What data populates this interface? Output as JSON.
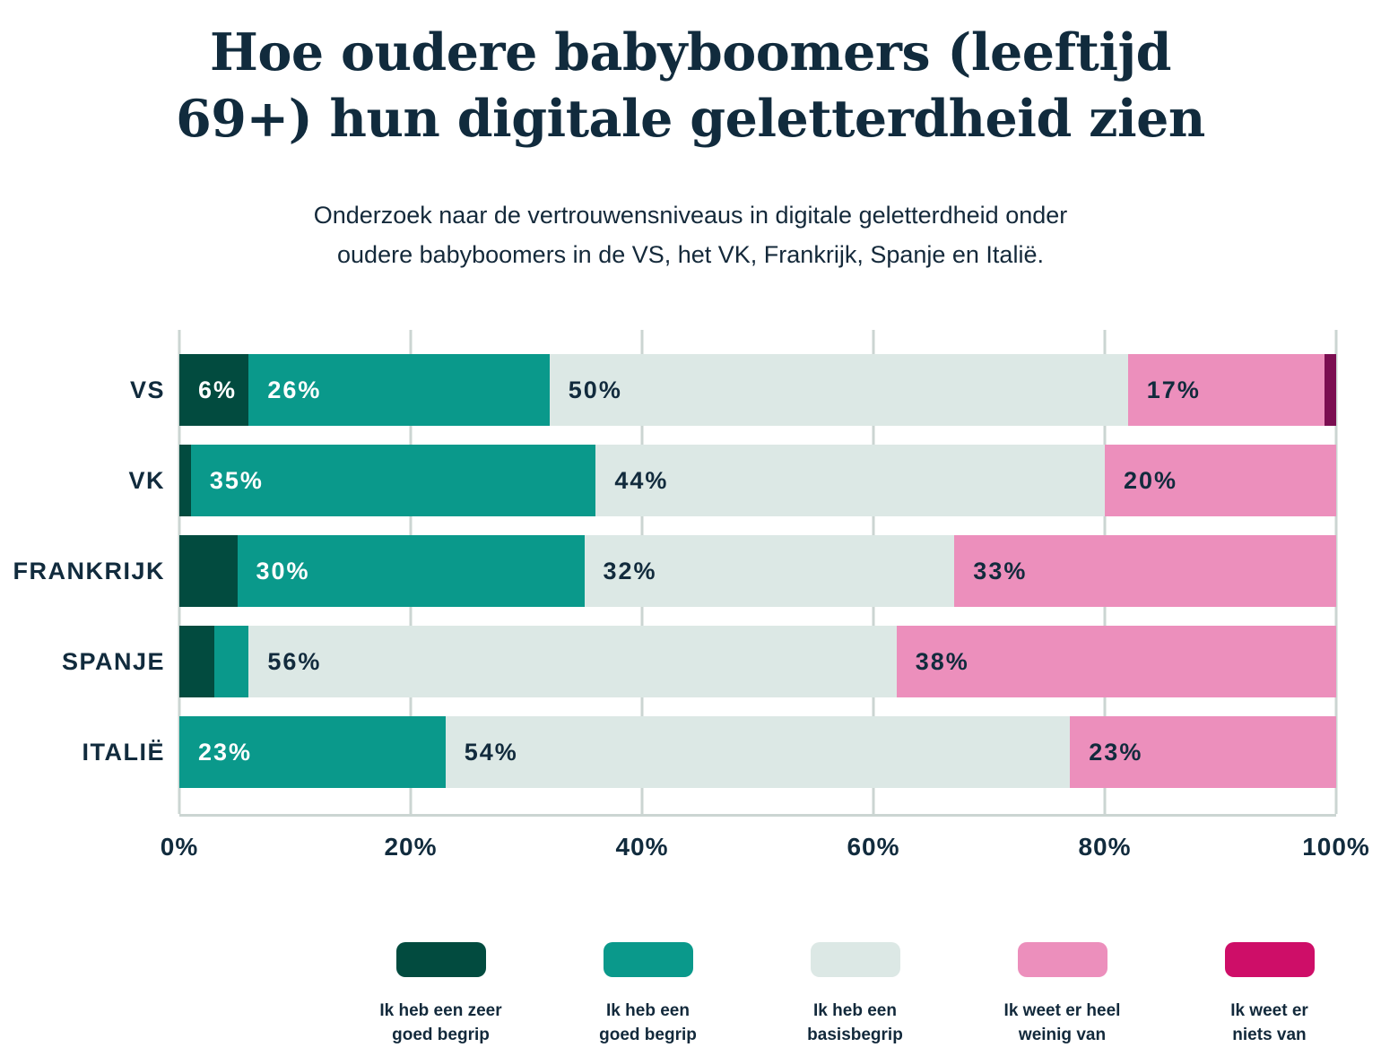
{
  "title": {
    "line1": "Hoe oudere babyboomers (leeftijd",
    "line2": "69+) hun digitale geletterdheid zien"
  },
  "subtitle": {
    "line1": "Onderzoek naar de vertrouwensniveaus in digitale geletterdheid onder",
    "line2": "oudere babyboomers in de VS, het VK, Frankrijk, Spanje en Italië."
  },
  "colors": {
    "text_navy": "#112b3d",
    "gridline": "#cbd5d2",
    "background": "#ffffff"
  },
  "chart_data": {
    "type": "bar",
    "orientation": "horizontal-stacked",
    "title": "Hoe oudere babyboomers (leeftijd 69+) hun digitale geletterdheid zien",
    "subtitle": "Onderzoek naar de vertrouwensniveaus in digitale geletterdheid onder oudere babyboomers in de VS, het VK, Frankrijk, Spanje en Italië.",
    "categories": [
      "VS",
      "VK",
      "FRANKRIJK",
      "SPANJE",
      "ITALIË"
    ],
    "series": [
      {
        "name": "Ik heb een zeer goed begrip",
        "color": "#024b3f",
        "label_color": "#ffffff",
        "values": [
          6,
          1,
          5,
          3,
          0
        ]
      },
      {
        "name": "Ik heb een goed begrip",
        "color": "#0a998b",
        "label_color": "#ffffff",
        "values": [
          26,
          35,
          30,
          3,
          23
        ]
      },
      {
        "name": "Ik heb een basisbegrip",
        "color": "#dce8e5",
        "label_color": "#122b3d",
        "values": [
          50,
          44,
          32,
          56,
          54
        ]
      },
      {
        "name": "Ik weet er heel weinig van",
        "color": "#ec8fbc",
        "label_color": "#122b3d",
        "values": [
          17,
          20,
          33,
          38,
          23
        ]
      },
      {
        "name": "Ik weet er niets van",
        "color": "#7b0e51",
        "label_color": "#122b3d",
        "values": [
          1,
          0,
          0,
          0,
          0
        ]
      }
    ],
    "bar_labels": [
      [
        "6%",
        "26%",
        "50%",
        "17%",
        ""
      ],
      [
        "",
        "35%",
        "44%",
        "20%",
        ""
      ],
      [
        "",
        "30%",
        "32%",
        "33%",
        ""
      ],
      [
        "",
        "",
        "56%",
        "38%",
        ""
      ],
      [
        "",
        "23%",
        "54%",
        "23%",
        ""
      ]
    ],
    "x_ticks": [
      "0%",
      "20%",
      "40%",
      "60%",
      "80%",
      "100%"
    ],
    "xlim": [
      0,
      100
    ],
    "grid": "vertical",
    "legend_position": "bottom"
  },
  "legend": [
    {
      "color": "#024b3f",
      "line1": "Ik heb een zeer",
      "line2": "goed begrip"
    },
    {
      "color": "#0a998b",
      "line1": "Ik heb een",
      "line2": "goed begrip"
    },
    {
      "color": "#dce8e5",
      "line1": "Ik heb een",
      "line2": "basisbegrip"
    },
    {
      "color": "#ec8fbc",
      "line1": "Ik weet er heel",
      "line2": "weinig van"
    },
    {
      "color": "#ce0e68",
      "line1": "Ik weet er",
      "line2": "niets van"
    }
  ]
}
